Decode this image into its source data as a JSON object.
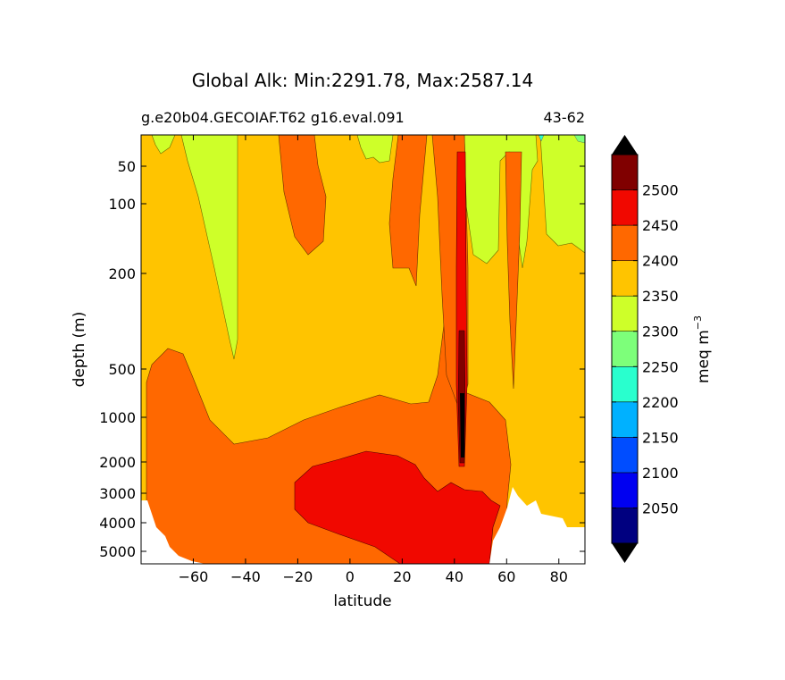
{
  "chart_data": {
    "type": "contour",
    "title": "Global Alk: Min:2291.78, Max:2587.14",
    "subtitle_left": "g.e20b04.GECOIAF.T62 g16.eval.091",
    "subtitle_right": "43-62",
    "xlabel": "latitude",
    "ylabel": "depth (m)",
    "colorbar_label": "meq m",
    "colorbar_label_exp": "−3",
    "xlim": [
      -80,
      90
    ],
    "xticks": [
      -60,
      -40,
      -20,
      0,
      20,
      40,
      60,
      80
    ],
    "xticklabels": [
      "−60",
      "−40",
      "−20",
      "0",
      "20",
      "40",
      "60",
      "80"
    ],
    "ylim": [
      5500,
      10
    ],
    "yscale": "log-like (inverted)",
    "yticks": [
      50,
      100,
      200,
      500,
      1000,
      2000,
      3000,
      4000,
      5000
    ],
    "yticklabels": [
      "50",
      "100",
      "200",
      "500",
      "1000",
      "2000",
      "3000",
      "4000",
      "5000"
    ],
    "levels": [
      2000,
      2050,
      2100,
      2150,
      2200,
      2250,
      2300,
      2350,
      2400,
      2450,
      2500,
      2550
    ],
    "colorbar_ticks": [
      "2050",
      "2100",
      "2150",
      "2200",
      "2250",
      "2300",
      "2350",
      "2400",
      "2450",
      "2500"
    ],
    "colors": [
      "#000080",
      "#0000f1",
      "#004dff",
      "#00b1ff",
      "#29ffce",
      "#7dff7a",
      "#ceff29",
      "#ffc400",
      "#ff6800",
      "#f10800",
      "#800000"
    ],
    "over_color": "#000000",
    "under_color": "#000000",
    "fields": [
      {
        "band": "2350-2400",
        "description": "background upper and intermediate water"
      },
      {
        "band": "2300-2350",
        "description": "southern surface lens (-60 to -48), equatorial/northern surface columns, Arctic surface"
      },
      {
        "band": "2400-2450",
        "description": "deep water below ~700-1500 m, surface lens -20 to -10, narrow columns near 15 and 40-45"
      },
      {
        "band": "2450-2500",
        "description": "deep core -25 to 55 below ~2000 m, vertical column at 42-44"
      },
      {
        "band": "2500-2550",
        "description": "narrow column at 43 between ~500 and 2000 m"
      }
    ]
  }
}
